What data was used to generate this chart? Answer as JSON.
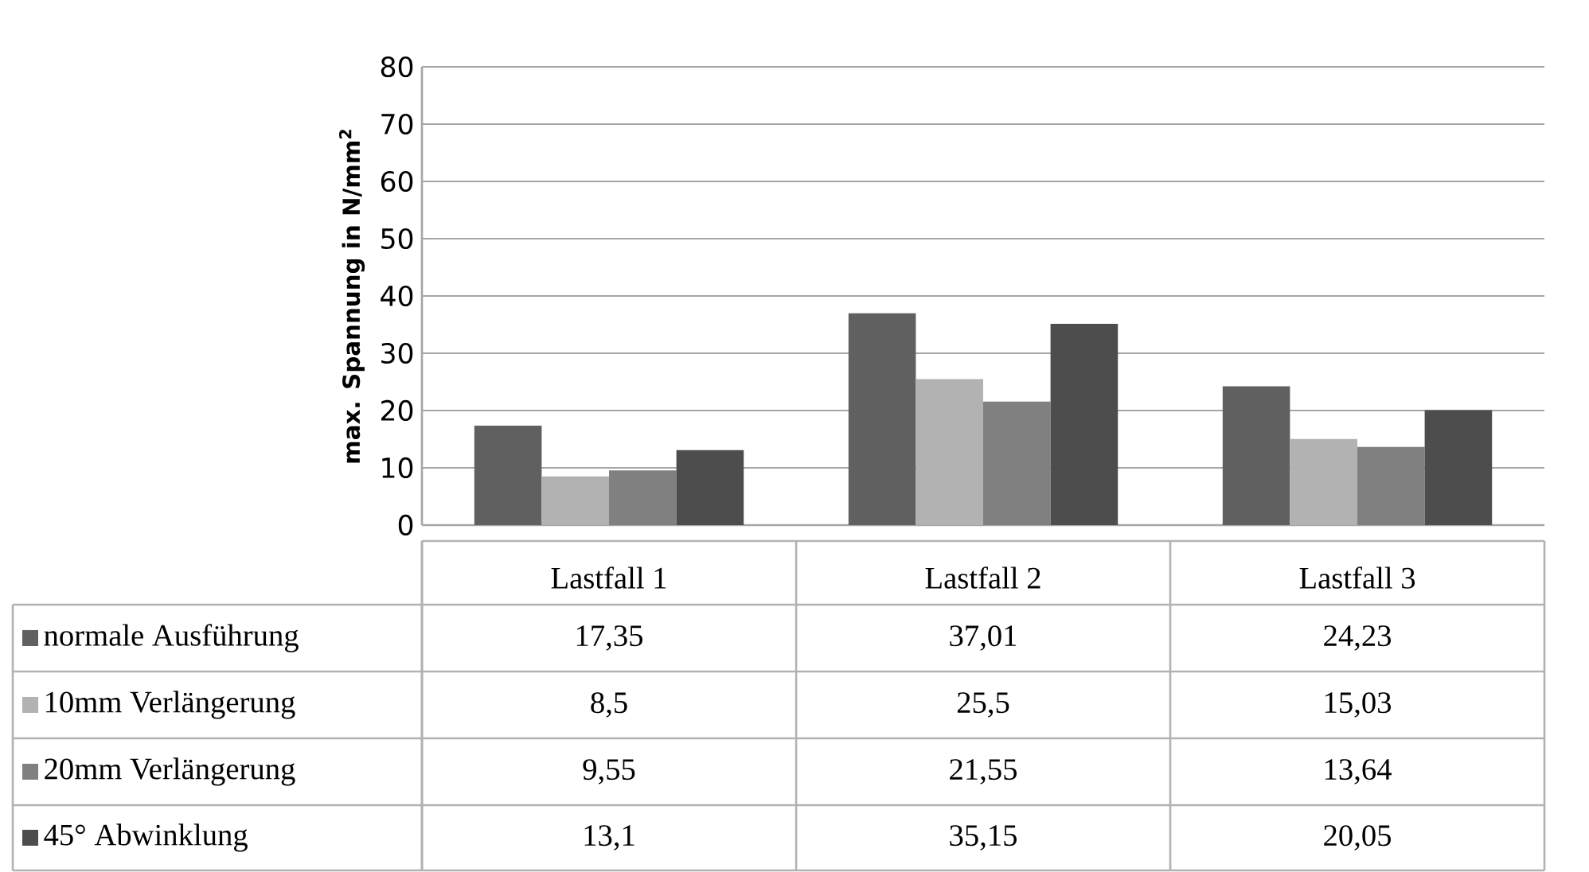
{
  "chart_data": {
    "type": "bar",
    "ylabel": "max. Spannung in N/mm$^{2}$",
    "categories": [
      "Lastfall 1",
      "Lastfall 2",
      "Lastfall 3"
    ],
    "series": [
      {
        "name": "normale Ausführung",
        "color": "#606060",
        "values": [
          17.35,
          37.01,
          24.23
        ],
        "value_labels": [
          "17,35",
          "37,01",
          "24,23"
        ]
      },
      {
        "name": "10mm Verlängerung",
        "color": "#b2b2b2",
        "values": [
          8.5,
          25.5,
          15.03
        ],
        "value_labels": [
          "8,5",
          "25,5",
          "15,03"
        ]
      },
      {
        "name": "20mm Verlängerung",
        "color": "#808080",
        "values": [
          9.55,
          21.55,
          13.64
        ],
        "value_labels": [
          "9,55",
          "21,55",
          "13,64"
        ]
      },
      {
        "name": "45° Abwinklung",
        "color": "#4d4d4d",
        "values": [
          13.1,
          35.15,
          20.05
        ],
        "value_labels": [
          "13,1",
          "35,15",
          "20,05"
        ]
      }
    ],
    "ylim": [
      0,
      80
    ],
    "yticks": [
      0,
      10,
      20,
      30,
      40,
      50,
      60,
      70,
      80
    ],
    "grid": "y",
    "legend": "bottom"
  }
}
